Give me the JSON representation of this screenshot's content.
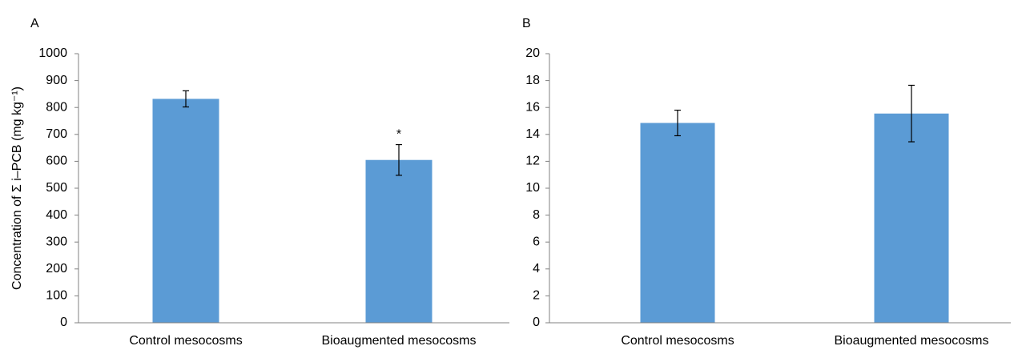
{
  "chart_data": [
    {
      "type": "bar",
      "panel_label": "A",
      "categories": [
        "Control mesocosms",
        "Bioaugmented mesocosms"
      ],
      "values": [
        832,
        605
      ],
      "error": [
        30,
        57
      ],
      "annotations": [
        "",
        "*"
      ],
      "ylabel": "Concentration of Σ i–PCB (mg kg⁻¹)",
      "ylim": [
        0,
        1000
      ],
      "yticks": [
        0,
        100,
        200,
        300,
        400,
        500,
        600,
        700,
        800,
        900,
        1000
      ],
      "bar_color": "#5B9BD5",
      "grid": false
    },
    {
      "type": "bar",
      "panel_label": "B",
      "categories": [
        "Control mesocosms",
        "Bioaugmented mesocosms"
      ],
      "values": [
        14.85,
        15.55
      ],
      "error": [
        0.95,
        2.1
      ],
      "annotations": [
        "",
        ""
      ],
      "ylabel": "",
      "ylim": [
        0,
        20
      ],
      "yticks": [
        0,
        2,
        4,
        6,
        8,
        10,
        12,
        14,
        16,
        18,
        20
      ],
      "bar_color": "#5B9BD5",
      "grid": false
    }
  ]
}
